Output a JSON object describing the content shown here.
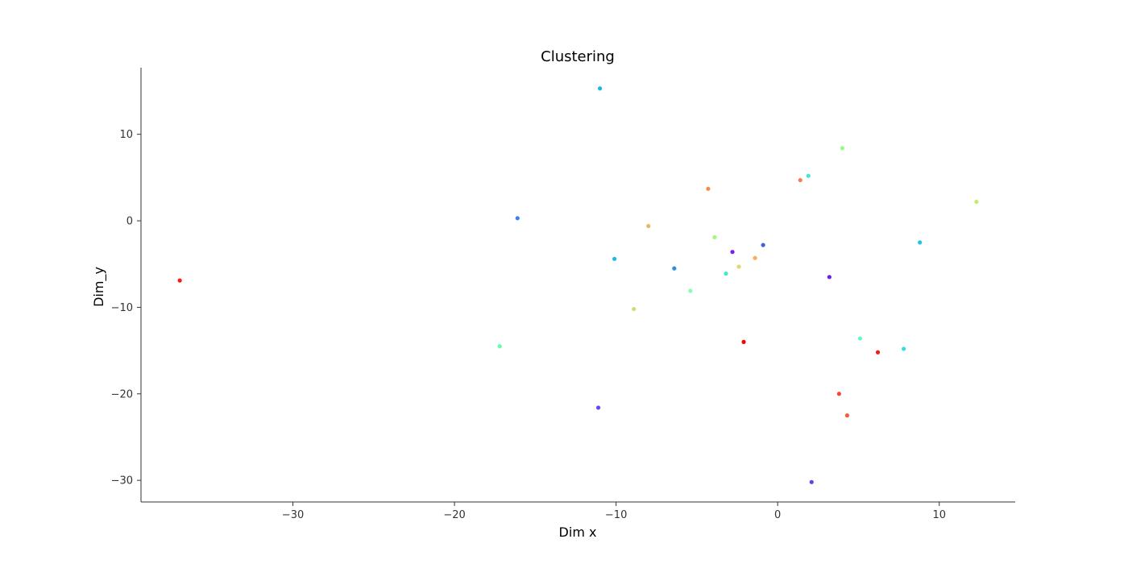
{
  "chart_data": {
    "type": "scatter",
    "title": "Clustering",
    "xlabel": "Dim x",
    "ylabel": "Dim_y",
    "xlim": [
      -39.4,
      14.7
    ],
    "ylim": [
      -32.5,
      17.7
    ],
    "xticks": [
      -30,
      -20,
      -10,
      0,
      10
    ],
    "yticks": [
      -30,
      -20,
      -10,
      0,
      10
    ],
    "grid": false,
    "points": [
      {
        "x": -37.0,
        "y": -6.9,
        "color": "#ff1a0d"
      },
      {
        "x": -16.1,
        "y": 0.3,
        "color": "#3f7fef"
      },
      {
        "x": -17.2,
        "y": -14.5,
        "color": "#6afbaa"
      },
      {
        "x": -11.0,
        "y": 15.3,
        "color": "#15b9e6"
      },
      {
        "x": -11.1,
        "y": -21.6,
        "color": "#6347f5"
      },
      {
        "x": -10.1,
        "y": -4.4,
        "color": "#1bbbe9"
      },
      {
        "x": -8.9,
        "y": -10.2,
        "color": "#c6e27a"
      },
      {
        "x": -8.0,
        "y": -0.6,
        "color": "#e3bb62"
      },
      {
        "x": -6.4,
        "y": -5.5,
        "color": "#2e8fdd"
      },
      {
        "x": -5.4,
        "y": -8.1,
        "color": "#83ffb1"
      },
      {
        "x": -4.3,
        "y": 3.7,
        "color": "#f98a4b"
      },
      {
        "x": -3.9,
        "y": -1.9,
        "color": "#a5f57d"
      },
      {
        "x": -3.2,
        "y": -6.1,
        "color": "#3fe8d4"
      },
      {
        "x": -2.8,
        "y": -3.6,
        "color": "#7a1fef"
      },
      {
        "x": -2.4,
        "y": -5.3,
        "color": "#e6d46c"
      },
      {
        "x": -2.1,
        "y": -14.0,
        "color": "#ff0000"
      },
      {
        "x": -1.4,
        "y": -4.3,
        "color": "#fbac55"
      },
      {
        "x": -0.9,
        "y": -2.8,
        "color": "#3f63e8"
      },
      {
        "x": 1.4,
        "y": 4.7,
        "color": "#f9804e"
      },
      {
        "x": 1.9,
        "y": 5.2,
        "color": "#4ce3d7"
      },
      {
        "x": 2.1,
        "y": -30.2,
        "color": "#5a43f0"
      },
      {
        "x": 3.2,
        "y": -6.5,
        "color": "#6b1ef0"
      },
      {
        "x": 3.8,
        "y": -20.0,
        "color": "#f84733"
      },
      {
        "x": 4.0,
        "y": 8.4,
        "color": "#99f88c"
      },
      {
        "x": 4.3,
        "y": -22.5,
        "color": "#fb5a3a"
      },
      {
        "x": 5.1,
        "y": -13.6,
        "color": "#65f9bf"
      },
      {
        "x": 6.2,
        "y": -15.2,
        "color": "#ee1f17"
      },
      {
        "x": 7.8,
        "y": -14.8,
        "color": "#2fdee2"
      },
      {
        "x": 8.8,
        "y": -2.5,
        "color": "#1fc4eb"
      },
      {
        "x": 12.3,
        "y": 2.2,
        "color": "#c2ec6e"
      }
    ]
  }
}
